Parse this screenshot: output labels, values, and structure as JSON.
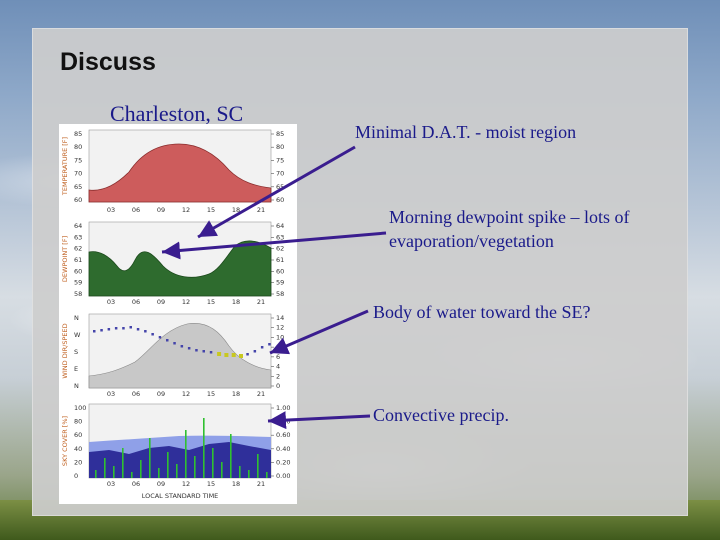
{
  "slide": {
    "title": "Discuss",
    "subtitle": "Charleston, SC"
  },
  "notes": [
    "Minimal D.A.T. - moist region",
    "Morning dewpoint spike – lots of evaporation/vegetation",
    "Body of water toward the SE?",
    "Convective precip."
  ],
  "meteogram": {
    "hour_ticks": [
      "03",
      "06",
      "09",
      "12",
      "15",
      "18",
      "21"
    ],
    "x_axis_label": "LOCAL STANDARD TIME",
    "panels": [
      {
        "y_label": "TEMPERATURE [F]",
        "left_ticks": [
          "85",
          "80",
          "75",
          "70",
          "65",
          "60"
        ],
        "right_ticks": [
          "85",
          "80",
          "75",
          "70",
          "65",
          "60"
        ]
      },
      {
        "y_label": "DEWPOINT [F]",
        "left_ticks": [
          "64",
          "63",
          "62",
          "61",
          "60",
          "59",
          "58"
        ],
        "right_ticks": [
          "64",
          "63",
          "62",
          "61",
          "60",
          "59",
          "58"
        ]
      },
      {
        "y_label": "WIND DIR/SPEED",
        "left_ticks": [
          "N",
          "W",
          "S",
          "E",
          "N"
        ],
        "right_ticks": [
          "14",
          "12",
          "10",
          "8",
          "6",
          "4",
          "2",
          "0"
        ]
      },
      {
        "y_label": "SKY COVER [%]",
        "left_ticks": [
          "100",
          "80",
          "60",
          "40",
          "20",
          "0"
        ],
        "right_ticks": [
          "1.00",
          "0.80",
          "0.60",
          "0.40",
          "0.20",
          "0.00"
        ]
      }
    ],
    "colors": {
      "temperature": "#cd5c5c",
      "dewpoint": "#2e6b2e",
      "wind_speed": "#c8c8c8",
      "wind_dir_dots": "#4444aa",
      "wind_dir_highlight": "#c8c820",
      "sky_light": "#8fa0e8",
      "sky_dark": "#2f2f9a",
      "precip": "#30c030"
    }
  },
  "arrow_color": "#3a1d8f"
}
